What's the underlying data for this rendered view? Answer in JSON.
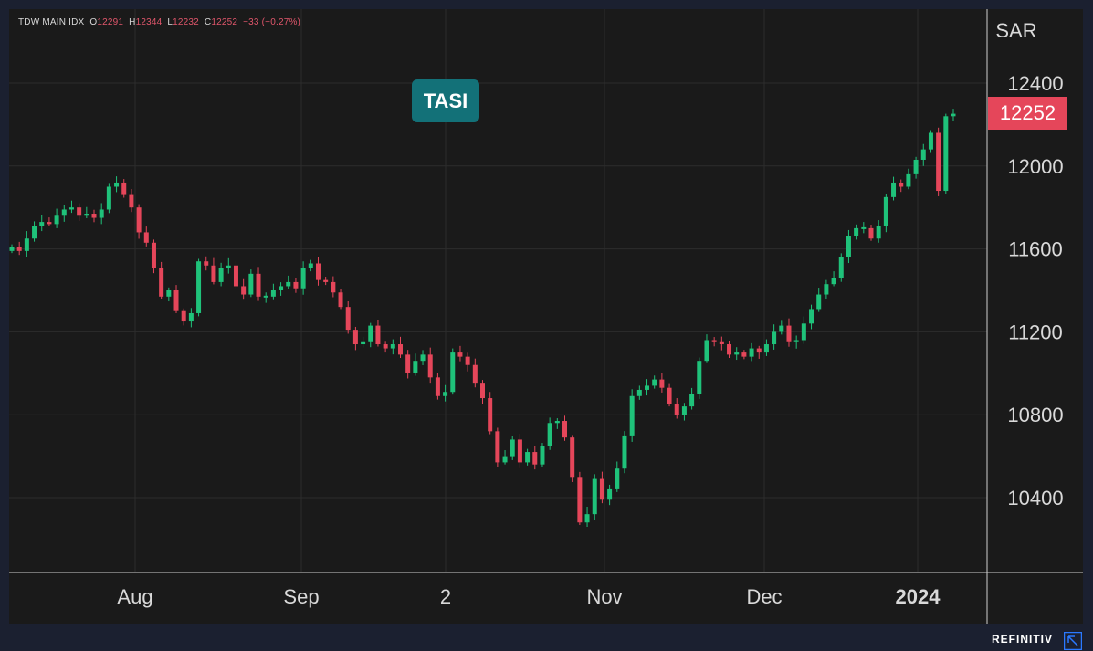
{
  "header": {
    "symbol": "TDW MAIN IDX",
    "o_label": "O",
    "o_value": "12291",
    "h_label": "H",
    "h_value": "12344",
    "l_label": "L",
    "l_value": "12232",
    "c_label": "C",
    "c_value": "12252",
    "change": "−33 (−0.27%)"
  },
  "badge": "TASI",
  "current_price": "12252",
  "currency": "SAR",
  "brand": "REFINITIV",
  "colors": {
    "up": "#1fc27a",
    "down": "#e5465a",
    "badge_bg": "#137178",
    "background": "#1a1a1a",
    "grid": "#2c2c2c"
  },
  "chart_data": {
    "type": "candlestick",
    "y_axis_label": "SAR",
    "y_ticks": [
      10400,
      10800,
      11200,
      11600,
      12000,
      12400
    ],
    "ylim": [
      10000,
      12600
    ],
    "x_tick_labels": [
      "Aug",
      "Sep",
      "2",
      "Nov",
      "Dec",
      "2024"
    ],
    "grid": true,
    "last_close": 12252,
    "closes": [
      11610,
      11590,
      11650,
      11710,
      11730,
      11720,
      11760,
      11790,
      11800,
      11760,
      11770,
      11750,
      11790,
      11900,
      11920,
      11860,
      11800,
      11680,
      11630,
      11510,
      11370,
      11400,
      11300,
      11250,
      11290,
      11540,
      11520,
      11440,
      11510,
      11520,
      11420,
      11380,
      11480,
      11370,
      11370,
      11400,
      11420,
      11440,
      11410,
      11510,
      11530,
      11450,
      11440,
      11390,
      11320,
      11210,
      11140,
      11150,
      11230,
      11140,
      11120,
      11140,
      11090,
      11000,
      11060,
      11090,
      10980,
      10890,
      10910,
      11100,
      11080,
      11040,
      10950,
      10880,
      10720,
      10570,
      10600,
      10680,
      10570,
      10620,
      10560,
      10650,
      10760,
      10770,
      10690,
      10500,
      10280,
      10320,
      10490,
      10390,
      10440,
      10540,
      10700,
      10890,
      10920,
      10940,
      10970,
      10930,
      10850,
      10800,
      10840,
      10900,
      11060,
      11160,
      11150,
      11140,
      11090,
      11100,
      11080,
      11120,
      11100,
      11140,
      11200,
      11230,
      11150,
      11160,
      11240,
      11310,
      11380,
      11430,
      11460,
      11560,
      11660,
      11700,
      11700,
      11650,
      11710,
      11850,
      11920,
      11900,
      11960,
      12030,
      12080,
      12160,
      11880,
      12240,
      12252
    ]
  }
}
